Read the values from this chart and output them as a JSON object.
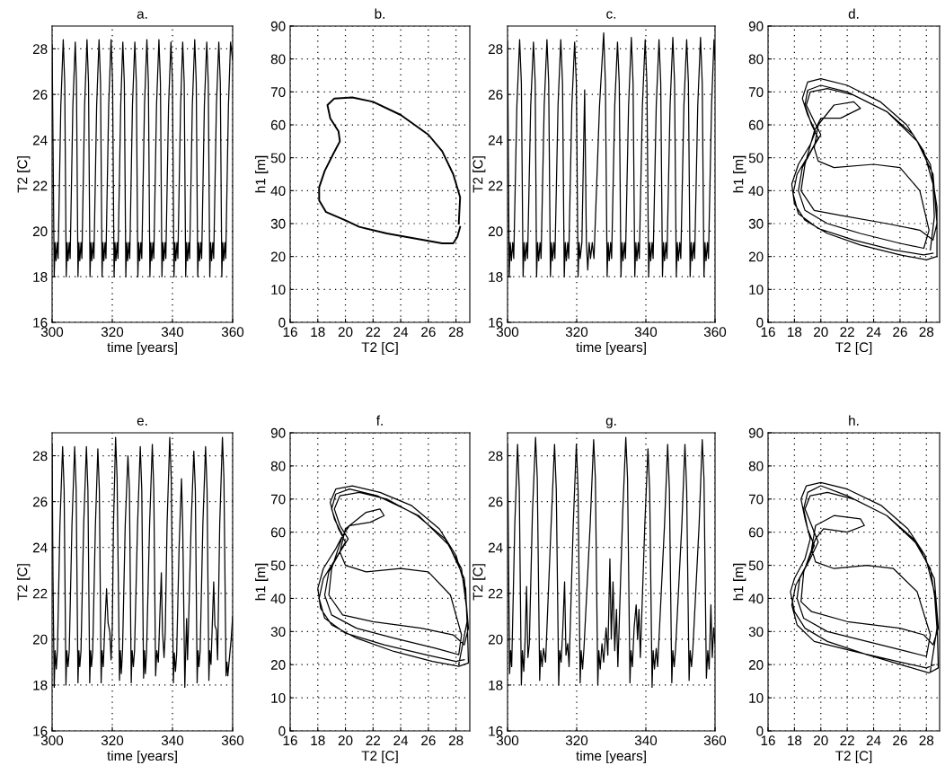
{
  "chart_data": [
    {
      "type": "line",
      "title": "a.",
      "xlabel": "time [years]",
      "ylabel": "T2 [C]",
      "xlim": [
        300,
        360
      ],
      "ylim": [
        16,
        29
      ],
      "xticks": [
        300,
        320,
        340,
        360
      ],
      "yticks": [
        16,
        18,
        20,
        22,
        24,
        26,
        28
      ],
      "grid": true,
      "line_style": "solid",
      "series": [
        {
          "color": "#000000",
          "x": [
            300,
            300.3,
            300.7,
            301.0,
            301.3,
            301.7,
            302.0,
            302.9,
            303.7,
            304.2,
            304.7,
            305.0,
            305.3,
            305.7,
            306.0,
            306.9,
            307.7,
            308.1,
            308.6,
            308.9,
            309.2,
            309.6,
            309.9,
            310.8,
            311.6,
            312.1,
            312.6,
            312.9,
            313.2,
            313.6,
            313.9,
            314.8,
            315.6,
            316.1,
            316.6,
            316.9,
            317.2,
            317.6,
            317.9,
            318.8,
            319.6,
            320.1,
            320.6,
            320.9,
            321.2,
            321.6,
            321.9,
            322.8,
            323.5,
            324.0,
            324.5,
            324.8,
            325.1,
            325.5,
            325.8,
            326.7,
            327.5,
            328.0,
            328.5,
            328.8,
            329.1,
            329.5,
            329.8,
            330.7,
            331.5,
            332.0,
            332.5,
            332.8,
            333.1,
            333.5,
            333.8,
            334.7,
            335.5,
            336.0,
            336.5,
            336.8,
            337.1,
            337.5,
            337.8,
            338.7,
            339.5,
            340.0,
            340.5,
            340.8,
            341.1,
            341.5,
            341.8,
            342.7,
            343.4,
            343.9,
            344.4,
            344.7,
            345.0,
            345.4,
            345.7,
            346.6,
            347.4,
            347.9,
            348.4,
            348.7,
            349.0,
            349.4,
            349.7,
            350.6,
            351.4,
            351.9,
            352.4,
            352.7,
            353.0,
            353.4,
            353.7,
            354.6,
            355.4,
            355.9,
            356.4,
            356.7,
            357.0,
            357.4,
            357.7,
            358.6,
            359.3,
            360
          ],
          "values": [
            28.2,
            24,
            18,
            19.5,
            18.7,
            19.5,
            18.8,
            25.5,
            28.4,
            26.5,
            18,
            19.5,
            18.7,
            19.5,
            18.8,
            25.5,
            28.3,
            26.5,
            18,
            19.5,
            18.7,
            19.5,
            18.8,
            25.5,
            28.4,
            26.5,
            18,
            19.5,
            18.7,
            19.5,
            18.8,
            25.5,
            28.4,
            26.5,
            18,
            19.5,
            18.7,
            19.5,
            18.8,
            25.5,
            28.4,
            26.5,
            18,
            19.5,
            18.7,
            19.5,
            18.8,
            25.5,
            28.3,
            26.5,
            18,
            19.5,
            18.7,
            19.5,
            18.8,
            25.5,
            28.3,
            26.5,
            18,
            19.5,
            18.7,
            19.5,
            18.8,
            25.5,
            28.4,
            26.5,
            18,
            19.5,
            18.7,
            19.5,
            18.8,
            25.5,
            28.4,
            26.5,
            18,
            19.5,
            18.7,
            19.5,
            18.8,
            25.5,
            28.3,
            26.5,
            18,
            19.5,
            18.7,
            19.5,
            18.8,
            25.5,
            28.3,
            26.5,
            18,
            19.5,
            18.7,
            19.5,
            18.8,
            25.5,
            28.4,
            26.5,
            18,
            19.5,
            18.7,
            19.5,
            18.8,
            25.5,
            28.3,
            26.5,
            18,
            19.5,
            18.7,
            19.5,
            18.8,
            25.5,
            28.3,
            26.5,
            18,
            19.5,
            18.7,
            19.5,
            18.8,
            25.5,
            28.3,
            27.5
          ]
        }
      ]
    },
    {
      "type": "line",
      "title": "b.",
      "xlabel": "T2 [C]",
      "ylabel": "h1 [m]",
      "xlim": [
        16,
        29
      ],
      "ylim": [
        0,
        90
      ],
      "xticks": [
        16,
        18,
        20,
        22,
        24,
        26,
        28
      ],
      "yticks": [
        0,
        10,
        20,
        30,
        40,
        50,
        60,
        70,
        80,
        90
      ],
      "grid": true,
      "line_style": "solid",
      "series": [
        {
          "color": "#000000",
          "x": [
            28.2,
            28.3,
            27.8,
            27,
            26,
            24,
            22,
            20.5,
            19.2,
            18.7,
            18.9,
            19.5,
            19.6,
            19.1,
            18.5,
            18.1,
            18.1,
            18.6,
            20,
            21,
            23,
            25,
            27,
            27.8,
            28.1,
            28.3
          ],
          "values": [
            30,
            38,
            45,
            52,
            57,
            63,
            67,
            68.3,
            68,
            66,
            62,
            58,
            55,
            51,
            46,
            41,
            37,
            33.5,
            31,
            29,
            27,
            25.5,
            24,
            24,
            26,
            29
          ]
        }
      ]
    },
    {
      "type": "line",
      "title": "c.",
      "xlabel": "time [years]",
      "ylabel": "T2 [C]",
      "xlim": [
        300,
        360
      ],
      "ylim": [
        16,
        29
      ],
      "xticks": [
        300,
        320,
        340,
        360
      ],
      "yticks": [
        16,
        18,
        20,
        22,
        24,
        26,
        28
      ],
      "grid": true,
      "line_style": "solid",
      "series": [
        {
          "color": "#000000",
          "x": [
            300,
            300.5,
            300.8,
            301.1,
            301.5,
            301.8,
            302.7,
            303.5,
            304.0,
            304.5,
            304.8,
            305.1,
            305.5,
            305.8,
            306.7,
            307.5,
            308.0,
            308.4,
            308.7,
            309.0,
            309.4,
            309.7,
            310.6,
            311.4,
            311.9,
            312.4,
            312.7,
            313.0,
            313.4,
            313.7,
            314.6,
            315.4,
            315.9,
            316.4,
            316.7,
            317.0,
            317.4,
            317.7,
            318.6,
            319.4,
            319.9,
            320.4,
            320.7,
            321.0,
            321.5,
            322.3,
            322.8,
            323.2,
            323.6,
            324.0,
            324.5,
            325.0,
            326.6,
            327.8,
            328.3,
            328.8,
            329.1,
            329.4,
            329.8,
            330.1,
            331.0,
            331.8,
            332.3,
            332.8,
            333.1,
            333.4,
            333.8,
            334.1,
            335.0,
            335.8,
            336.3,
            336.8,
            337.1,
            337.4,
            337.8,
            338.1,
            339.0,
            339.8,
            340.3,
            340.8,
            341.1,
            341.4,
            341.8,
            342.1,
            343.0,
            343.8,
            344.3,
            344.8,
            345.1,
            345.4,
            345.8,
            346.1,
            347.0,
            347.8,
            348.3,
            348.8,
            349.1,
            349.4,
            349.8,
            350.1,
            351.0,
            351.8,
            352.3,
            352.8,
            353.1,
            353.4,
            353.8,
            354.1,
            355.0,
            355.8,
            356.3,
            356.8,
            357.1,
            357.4,
            357.8,
            358.1,
            359.0,
            359.7,
            360
          ],
          "values": [
            28.3,
            18,
            19.5,
            18.7,
            19.5,
            18.8,
            25.5,
            28.4,
            26.5,
            18,
            19.5,
            18.7,
            19.5,
            18.8,
            25.5,
            28.3,
            26.5,
            18,
            19.5,
            18.7,
            19.5,
            18.8,
            25.5,
            28.4,
            26.5,
            18,
            19.5,
            18.7,
            19.5,
            18.8,
            25.5,
            28.4,
            26.5,
            18,
            19.5,
            18.7,
            19.5,
            18.8,
            25.5,
            28.3,
            26.5,
            18,
            19.5,
            18.8,
            19.5,
            26.2,
            19.5,
            18.3,
            19.5,
            18.8,
            19.5,
            18.8,
            25.5,
            28.7,
            26.5,
            18,
            19.5,
            18.7,
            19.5,
            18.8,
            25.5,
            28.3,
            26.5,
            18,
            19.5,
            18.7,
            19.5,
            18.8,
            25.5,
            28.5,
            26.5,
            18,
            19.5,
            18.7,
            19.5,
            18.8,
            25.5,
            28.4,
            26.5,
            18,
            19.5,
            18.7,
            19.5,
            18.8,
            25.5,
            28.4,
            26.5,
            18,
            19.5,
            18.7,
            19.5,
            18.8,
            25.5,
            28.5,
            26.5,
            18,
            19.5,
            18.7,
            19.5,
            18.8,
            25.5,
            28.4,
            26.5,
            18,
            19.5,
            18.7,
            19.5,
            18.8,
            25.5,
            28.5,
            26.5,
            18,
            19.5,
            18.7,
            19.5,
            18.8,
            25.5,
            28.4,
            27.5
          ]
        }
      ]
    },
    {
      "type": "line",
      "title": "d.",
      "xlabel": "T2 [C]",
      "ylabel": "h1 [m]",
      "xlim": [
        16,
        29
      ],
      "ylim": [
        0,
        90
      ],
      "xticks": [
        16,
        18,
        20,
        22,
        24,
        26,
        28
      ],
      "yticks": [
        0,
        10,
        20,
        30,
        40,
        50,
        60,
        70,
        80,
        90
      ],
      "grid": true,
      "line_style": "solid",
      "series": [
        {
          "color": "#000000",
          "x": [
            28.3,
            28.6,
            28.5,
            27.8,
            26.5,
            24.5,
            22,
            20,
            19,
            18.6,
            19,
            19.6,
            19.2,
            18.3,
            17.8,
            18,
            18.8,
            20.5,
            23,
            26,
            28,
            28.8,
            28.8,
            28.3,
            27,
            25,
            22.5,
            20.5,
            19.2,
            18.9,
            19.5,
            20,
            19.4,
            18.6,
            18.3,
            18.8,
            20.5,
            23,
            26,
            27.8,
            28.2,
            27.5,
            26,
            24,
            21,
            19.8,
            19.5,
            19.8,
            21,
            22.5,
            23,
            21.5,
            20,
            19.5,
            18.8,
            18.5,
            19.5,
            21.5,
            25,
            27.5,
            28.5,
            28.8,
            28.5,
            27.3,
            25,
            22,
            20,
            19,
            18.8,
            19.3,
            19.8,
            19.1,
            18.2,
            17.9,
            18.3,
            19.8,
            22.5,
            25.5,
            27.8,
            28.5
          ],
          "values": [
            22,
            32,
            42,
            52,
            60,
            67,
            72,
            74,
            73,
            68,
            63,
            58,
            54,
            48,
            42,
            36,
            31,
            27,
            23.5,
            20.5,
            19,
            20,
            35,
            48,
            57,
            64,
            69,
            71,
            70,
            66,
            61,
            57,
            53,
            47,
            40,
            34,
            30,
            27,
            24,
            22.5,
            28,
            40,
            47,
            48,
            47,
            49,
            53,
            60,
            66,
            67,
            65,
            62,
            62,
            58,
            48,
            40,
            34,
            32.5,
            30,
            28,
            25,
            30,
            45,
            55,
            64,
            70,
            72,
            70.5,
            66,
            60,
            56,
            51,
            45,
            39,
            33,
            28.5,
            25,
            22,
            20.5,
            21
          ]
        }
      ]
    },
    {
      "type": "line",
      "title": "e.",
      "xlabel": "time [years]",
      "ylabel": "T2 [C]",
      "xlim": [
        300,
        360
      ],
      "ylim": [
        16,
        29
      ],
      "xticks": [
        300,
        320,
        340,
        360
      ],
      "yticks": [
        16,
        18,
        20,
        22,
        24,
        26,
        28
      ],
      "grid": true,
      "line_style": "solid",
      "series": [
        {
          "color": "#000000",
          "x": [
            300,
            300.3,
            300.7,
            301.0,
            301.4,
            301.8,
            302.6,
            303.5,
            304.0,
            304.6,
            304.9,
            305.3,
            305.7,
            306.6,
            307.5,
            308.0,
            308.6,
            308.9,
            309.2,
            309.6,
            310.5,
            311.4,
            311.9,
            312.5,
            312.8,
            313.1,
            313.5,
            314.4,
            315.2,
            315.7,
            316.3,
            316.6,
            317.0,
            317.5,
            318.1,
            318.6,
            319.2,
            319.6,
            320.0,
            320.4,
            321.1,
            321.6,
            322.4,
            322.7,
            323.0,
            323.4,
            324.3,
            325.2,
            325.7,
            326.3,
            326.6,
            327.0,
            327.4,
            328.4,
            329.3,
            329.8,
            330.4,
            330.7,
            331.0,
            331.4,
            332.4,
            333.3,
            333.8,
            334.4,
            334.8,
            335.3,
            335.8,
            336.3,
            336.7,
            337.2,
            337.6,
            338.2,
            339.1,
            339.6,
            340.3,
            340.6,
            341.0,
            341.4,
            342.2,
            343.0,
            343.4,
            344.1,
            344.4,
            344.7,
            345.0,
            345.4,
            346.2,
            347.1,
            347.6,
            348.2,
            348.5,
            348.8,
            349.2,
            350.1,
            351.0,
            351.5,
            352.1,
            352.4,
            352.8,
            353.2,
            353.7,
            354.1,
            354.6,
            355.0,
            355.7,
            356.6,
            357.1,
            357.8,
            358.1,
            358.4,
            358.8,
            359.5,
            360
          ],
          "values": [
            28.5,
            22.7,
            17.9,
            19.5,
            18.7,
            19.6,
            25,
            28.4,
            26.5,
            18,
            19.5,
            18.8,
            19.5,
            25,
            28.4,
            26.5,
            18.1,
            19.5,
            18.8,
            19.5,
            25,
            28.4,
            26.5,
            18.1,
            19.5,
            18.8,
            19.5,
            25,
            28.3,
            26.5,
            18.1,
            19.5,
            18.8,
            20.5,
            22.2,
            20.7,
            20.3,
            19.1,
            20.5,
            25,
            28.8,
            27,
            18.2,
            19.5,
            18.5,
            19.5,
            25,
            28.0,
            26.5,
            18.1,
            19.5,
            18.8,
            19.5,
            25,
            28.4,
            26.5,
            18.3,
            19.5,
            18.5,
            19.5,
            25,
            28.5,
            26.5,
            18.4,
            19.5,
            19.0,
            21,
            22.9,
            20.3,
            19.2,
            20.3,
            25,
            28.8,
            27,
            18.1,
            19.4,
            18.6,
            19.4,
            24,
            27.0,
            25,
            17.9,
            19.5,
            20.9,
            19.1,
            20.9,
            25,
            28.2,
            26.5,
            18.1,
            19.5,
            18.8,
            19.5,
            25,
            28.4,
            26.5,
            18.2,
            19.5,
            18.9,
            20.5,
            22.5,
            20.6,
            20.4,
            19.1,
            25,
            28.8,
            27,
            18.4,
            19,
            18.4,
            19,
            20,
            21
          ]
        }
      ]
    },
    {
      "type": "line",
      "title": "f.",
      "xlabel": "T2 [C]",
      "ylabel": "h1 [m]",
      "xlim": [
        16,
        29
      ],
      "ylim": [
        0,
        90
      ],
      "xticks": [
        16,
        18,
        20,
        22,
        24,
        26,
        28
      ],
      "yticks": [
        0,
        10,
        20,
        30,
        40,
        50,
        60,
        70,
        80,
        90
      ],
      "grid": true,
      "line_style": "solid",
      "series": [
        {
          "color": "#000000",
          "x": [
            28.2,
            28.8,
            28.7,
            28,
            26.8,
            24.8,
            22.5,
            20.5,
            19.3,
            18.9,
            19.2,
            19.8,
            19.3,
            18.4,
            18,
            18.2,
            19,
            20.8,
            23.5,
            26.3,
            28.2,
            28.9,
            28.8,
            28.4,
            27.2,
            25.2,
            23,
            21,
            19.6,
            19.2,
            19.6,
            20.2,
            19.6,
            18.8,
            18.5,
            19,
            20.8,
            23.5,
            26.5,
            28.2,
            28.4,
            27.6,
            26,
            24,
            21.5,
            20,
            19.6,
            20,
            21.5,
            22.5,
            22.8,
            21.8,
            20.3,
            19.8,
            19,
            18.8,
            19.8,
            22,
            25.5,
            27.8,
            28.6,
            28.9,
            28.6,
            27.5,
            25.3,
            22.3,
            20.3,
            19.3,
            19,
            19.5,
            20,
            19.3,
            18.4,
            18.1,
            18.5,
            20,
            22.8,
            25.8,
            28,
            28.6
          ],
          "values": [
            20,
            33,
            43,
            53,
            61,
            68,
            72,
            74,
            73,
            69,
            64,
            59,
            55,
            49,
            43,
            37,
            32,
            28,
            24,
            21,
            19.5,
            20.5,
            36,
            49,
            58,
            65,
            70,
            72,
            71,
            67,
            62,
            58,
            54,
            48,
            41,
            35,
            31,
            28,
            25,
            23,
            29,
            41,
            48,
            49,
            48,
            50,
            54,
            61,
            66,
            67,
            65,
            63,
            62,
            59,
            49,
            41,
            35,
            33,
            31,
            29,
            26,
            31,
            46,
            56,
            65,
            71,
            73,
            71.5,
            67,
            61,
            57,
            52,
            46,
            40,
            34,
            29.5,
            26,
            23,
            21,
            21.5
          ]
        }
      ]
    },
    {
      "type": "line",
      "title": "g.",
      "xlabel": "time [years]",
      "ylabel": "T2 [C]",
      "xlim": [
        300,
        360
      ],
      "ylim": [
        16,
        29
      ],
      "xticks": [
        300,
        320,
        340,
        360
      ],
      "yticks": [
        16,
        18,
        20,
        22,
        24,
        26,
        28
      ],
      "grid": true,
      "line_style": "solid",
      "series": [
        {
          "color": "#000000",
          "x": [
            300,
            300.6,
            300.9,
            301.2,
            302.1,
            302.9,
            303.4,
            304.0,
            304.3,
            304.7,
            305.1,
            305.5,
            305.9,
            306.3,
            307.2,
            308.1,
            308.6,
            309.3,
            309.6,
            310.0,
            310.4,
            311.0,
            312.6,
            313.6,
            314.1,
            314.8,
            315.1,
            315.5,
            316.0,
            316.5,
            316.9,
            317.4,
            317.8,
            319.0,
            319.9,
            320.4,
            321.0,
            321.3,
            321.7,
            322.1,
            323.9,
            324.9,
            325.4,
            326.1,
            326.4,
            326.8,
            327.3,
            327.8,
            328.5,
            329.0,
            329.6,
            330.0,
            330.5,
            331.0,
            331.5,
            331.9,
            333.3,
            334.2,
            334.7,
            335.4,
            335.7,
            336.1,
            336.6,
            337.2,
            337.6,
            338.0,
            338.4,
            339.7,
            340.6,
            341.1,
            341.8,
            342.1,
            342.5,
            343.0,
            343.4,
            345.4,
            346.3,
            346.8,
            347.5,
            347.8,
            348.2,
            348.6,
            350.4,
            351.3,
            351.8,
            352.5,
            352.8,
            353.2,
            353.6,
            355.4,
            356.3,
            356.8,
            357.5,
            357.9,
            358.3,
            358.8,
            359.2,
            359.6,
            360
          ],
          "values": [
            28.5,
            18.5,
            19.5,
            18.8,
            25,
            28.5,
            26.5,
            18,
            19.5,
            18.6,
            20,
            22.3,
            19.2,
            19.8,
            25.5,
            28.8,
            27,
            18.2,
            19.5,
            18.8,
            19.6,
            19.0,
            25,
            28.5,
            26.5,
            18,
            19.5,
            19,
            20.5,
            22.5,
            19.3,
            19.8,
            18.8,
            25,
            28.5,
            26.5,
            18.1,
            19.5,
            18.7,
            19.6,
            25,
            28.7,
            27,
            18,
            19.5,
            18.7,
            19.8,
            19,
            20.5,
            19.3,
            23.5,
            20,
            22.5,
            19.5,
            21.3,
            18.8,
            25.5,
            28.8,
            27,
            18.1,
            19.5,
            18.8,
            20.5,
            21.5,
            20,
            21.3,
            19.2,
            25,
            28.3,
            26.5,
            17.9,
            19.5,
            18.7,
            19.6,
            18.8,
            25,
            28.5,
            26.5,
            18.1,
            19.5,
            18.8,
            19.6,
            25,
            28.5,
            26.5,
            18.2,
            19.5,
            18.8,
            19.6,
            25,
            28.7,
            27,
            18.3,
            19.5,
            18.7,
            21.5,
            19.2,
            20.5,
            19.8
          ]
        }
      ]
    },
    {
      "type": "line",
      "title": "h.",
      "xlabel": "T2 [C]",
      "ylabel": "h1 [m]",
      "xlim": [
        16,
        29
      ],
      "ylim": [
        0,
        90
      ],
      "xticks": [
        16,
        18,
        20,
        22,
        24,
        26,
        28
      ],
      "yticks": [
        0,
        10,
        20,
        30,
        40,
        50,
        60,
        70,
        80,
        90
      ],
      "grid": true,
      "line_style": "solid",
      "series": [
        {
          "color": "#000000",
          "x": [
            28.3,
            28.8,
            28.6,
            27.9,
            26.6,
            24.6,
            22,
            20,
            18.9,
            18.5,
            18.8,
            19.2,
            18.8,
            18,
            17.7,
            18,
            18.8,
            20.5,
            23.5,
            26.5,
            28.2,
            28.9,
            28.8,
            28.3,
            27,
            25,
            22.5,
            20.5,
            19.2,
            18.8,
            19.3,
            19.8,
            19.2,
            18.4,
            18.2,
            18.7,
            20.5,
            23.5,
            26.5,
            28,
            28.3,
            27.3,
            25.5,
            23.5,
            21,
            19.6,
            19.3,
            19.6,
            21,
            23,
            23.3,
            22,
            20.2,
            19.6,
            18.7,
            18.5,
            19.3,
            22,
            26,
            27.8,
            28.5,
            28.9,
            28.6,
            27.4,
            25,
            22,
            20,
            19,
            18.7,
            19,
            19.5,
            18.9,
            18.1,
            17.8,
            18.2,
            19.5,
            22.5,
            25.8,
            28,
            28.6
          ],
          "values": [
            18,
            31,
            42,
            53,
            61,
            68,
            73,
            75,
            74,
            70,
            64,
            58,
            52,
            46,
            42,
            36,
            31,
            27,
            23,
            19.5,
            17.5,
            19,
            36,
            49,
            58,
            65,
            70,
            72,
            71,
            67,
            62,
            57,
            52,
            46,
            40,
            34,
            30,
            27,
            24,
            22.5,
            29,
            42,
            49,
            50,
            49,
            51,
            55,
            62,
            65,
            64,
            62,
            60,
            61,
            58,
            48,
            39,
            36,
            33,
            31,
            29,
            26,
            31,
            46,
            56,
            65,
            71,
            74,
            72,
            67,
            61,
            56,
            50,
            44,
            38,
            32,
            27,
            24,
            21,
            19,
            20
          ]
        }
      ]
    }
  ]
}
